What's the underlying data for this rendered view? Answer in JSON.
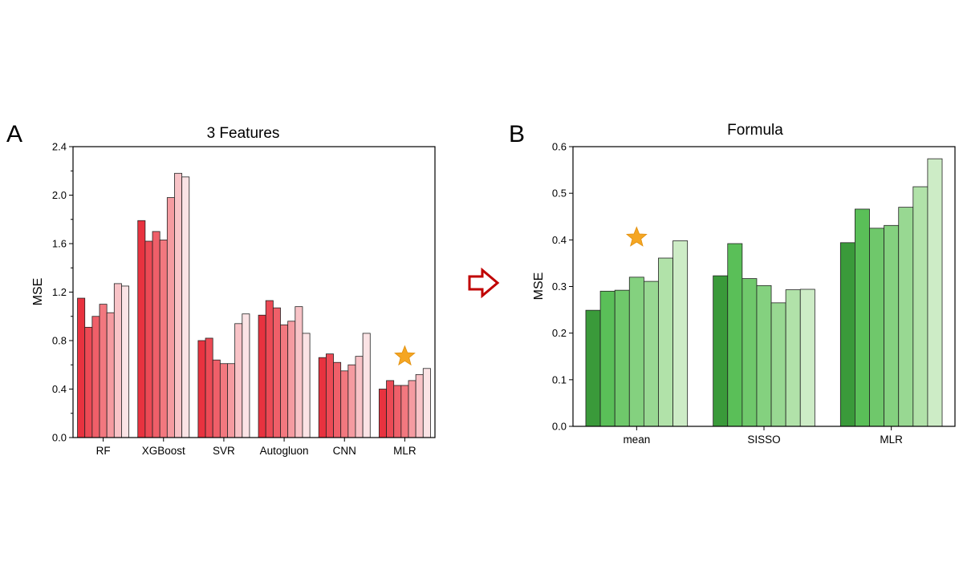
{
  "colors": {
    "red_shades": [
      "#e8323f",
      "#ec4a55",
      "#ef5f69",
      "#f2787f",
      "#f59ba1",
      "#f8c3c7",
      "#fbe3e5"
    ],
    "green_shades": [
      "#3a9a3a",
      "#5abf58",
      "#6fc86b",
      "#84d17f",
      "#98d892",
      "#b1e2a9",
      "#cdecc6"
    ],
    "star": "#f5a623",
    "arrow": "#c00000"
  },
  "chart_data": [
    {
      "id": "A",
      "panel_label": "A",
      "type": "bar",
      "title": "3 Features",
      "xlabel": "",
      "ylabel": "MSE",
      "ylim": [
        0,
        2.4
      ],
      "yticks": [
        0.0,
        0.4,
        0.8,
        1.2,
        1.6,
        2.0,
        2.4
      ],
      "ytick_labels": [
        "0.0",
        "0.4",
        "0.8",
        "1.2",
        "1.6",
        "2.0",
        "2.4"
      ],
      "categories": [
        "RF",
        "XGBoost",
        "SVR",
        "Autogluon",
        "CNN",
        "MLR"
      ],
      "values": [
        [
          1.15,
          0.91,
          1.0,
          1.1,
          1.03,
          1.27,
          1.25
        ],
        [
          1.79,
          1.62,
          1.7,
          1.63,
          1.98,
          2.18,
          2.15
        ],
        [
          0.8,
          0.82,
          0.64,
          0.61,
          0.61,
          0.94,
          1.02
        ],
        [
          1.01,
          1.13,
          1.07,
          0.93,
          0.96,
          1.08,
          0.86
        ],
        [
          0.66,
          0.69,
          0.62,
          0.55,
          0.6,
          0.67,
          0.86
        ],
        [
          0.4,
          0.47,
          0.43,
          0.43,
          0.47,
          0.52,
          0.57
        ]
      ],
      "highlight": {
        "category": "MLR",
        "value": 0.67,
        "symbol": "star"
      }
    },
    {
      "id": "B",
      "panel_label": "B",
      "type": "bar",
      "title": "Formula",
      "xlabel": "",
      "ylabel": "MSE",
      "ylim": [
        0,
        0.6
      ],
      "yticks": [
        0.0,
        0.1,
        0.2,
        0.3,
        0.4,
        0.5,
        0.6
      ],
      "ytick_labels": [
        "0.0",
        "0.1",
        "0.2",
        "0.3",
        "0.4",
        "0.5",
        "0.6"
      ],
      "categories": [
        "mean",
        "SISSO",
        "MLR"
      ],
      "values": [
        [
          0.249,
          0.29,
          0.292,
          0.32,
          0.311,
          0.361,
          0.398
        ],
        [
          0.323,
          0.392,
          0.317,
          0.302,
          0.265,
          0.293,
          0.294
        ],
        [
          0.394,
          0.466,
          0.425,
          0.431,
          0.47,
          0.514,
          0.574
        ]
      ],
      "highlight": {
        "category": "mean",
        "value": 0.405,
        "symbol": "star"
      }
    }
  ]
}
